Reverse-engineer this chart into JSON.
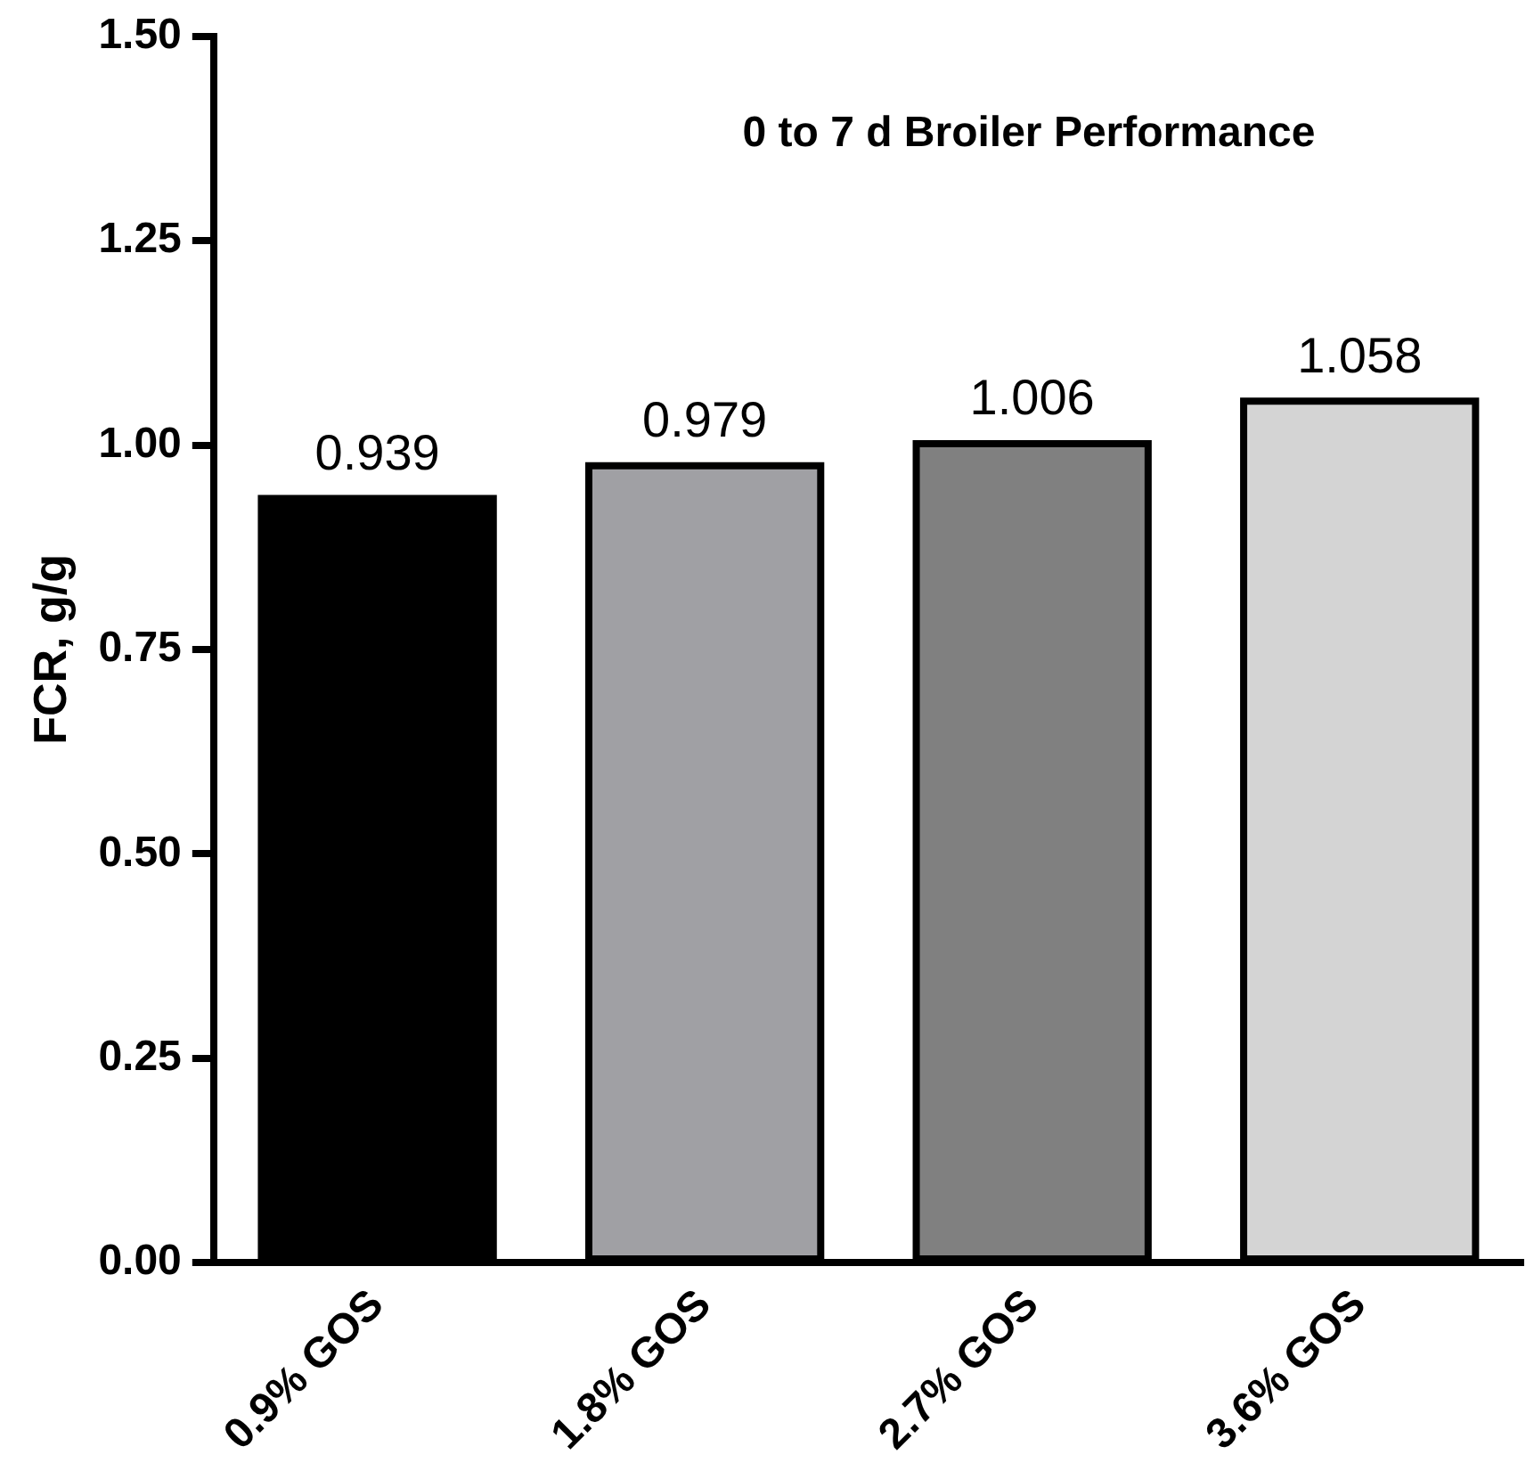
{
  "chart_data": {
    "type": "bar",
    "title": "0 to 7 d Broiler Performance",
    "ylabel": "FCR, g/g",
    "categories": [
      "0.9% GOS",
      "1.8% GOS",
      "2.7% GOS",
      "3.6% GOS"
    ],
    "values": [
      0.939,
      0.979,
      1.006,
      1.058
    ],
    "colors": [
      "#000000",
      "#a0a0a4",
      "#808080",
      "#d4d4d4"
    ],
    "ylim": [
      0,
      1.5
    ],
    "yticks": [
      {
        "value": 0,
        "label": "0.00"
      },
      {
        "value": 0.25,
        "label": "0.25"
      },
      {
        "value": 0.5,
        "label": "0.50"
      },
      {
        "value": 0.75,
        "label": "0.75"
      },
      {
        "value": 1,
        "label": "1.00"
      },
      {
        "value": 1.25,
        "label": "1.25"
      },
      {
        "value": 1.5,
        "label": "1.50"
      }
    ],
    "grid": false,
    "legend": false,
    "data_labels": true
  }
}
